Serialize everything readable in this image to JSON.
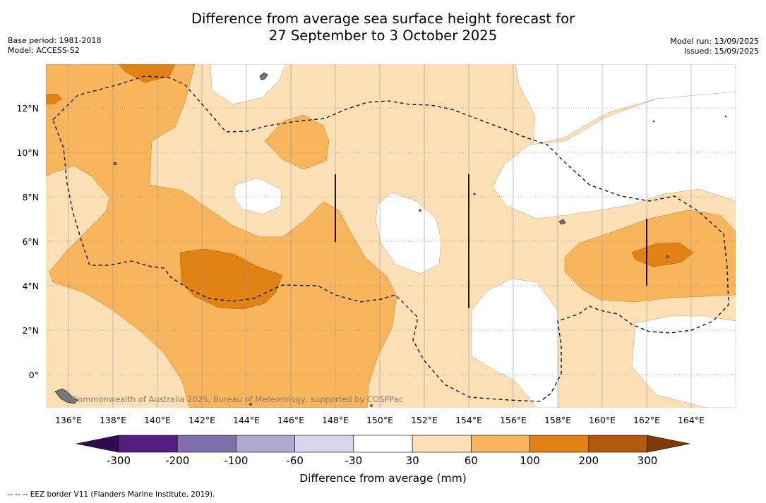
{
  "title_line1": "Difference from average sea surface height forecast for",
  "title_line2": "27 September to 3 October 2025",
  "meta_left": [
    "Base period: 1981-2018",
    "Model: ACCESS-S2"
  ],
  "meta_right": [
    "Model run: 13/09/2025",
    "Issued: 15/09/2025"
  ],
  "watermark": "Commonwealth of Australia 2025, Bureau of Meteorology, supported by COSPPac",
  "map": {
    "lon_ticks": [
      "136°E",
      "138°E",
      "140°E",
      "142°E",
      "144°E",
      "146°E",
      "148°E",
      "150°E",
      "152°E",
      "154°E",
      "156°E",
      "158°E",
      "160°E",
      "162°E",
      "164°E"
    ],
    "lat_ticks": [
      "12°N",
      "10°N",
      "8°N",
      "6°N",
      "4°N",
      "2°N",
      "0°"
    ]
  },
  "colorbar": {
    "label": "Difference from average (mm)",
    "ticks": [
      "-300",
      "-200",
      "-100",
      "-60",
      "-30",
      "30",
      "60",
      "100",
      "200",
      "300"
    ],
    "colors": [
      "#531e80",
      "#7e6fac",
      "#b0a8d0",
      "#d7d6ea",
      "#ffffff",
      "#fde0b5",
      "#f9b55c",
      "#e18213",
      "#b15a0b"
    ],
    "extend_low": "#2d0a52",
    "extend_high": "#7f3a06"
  },
  "legend_footer": "--  --  -- EEZ border V11 (Flanders Marine Institute, 2019).",
  "palette": {
    "c30_60": "#fde0b5",
    "c60_100": "#f9b55c",
    "c100_200": "#e18213",
    "white": "#ffffff"
  }
}
